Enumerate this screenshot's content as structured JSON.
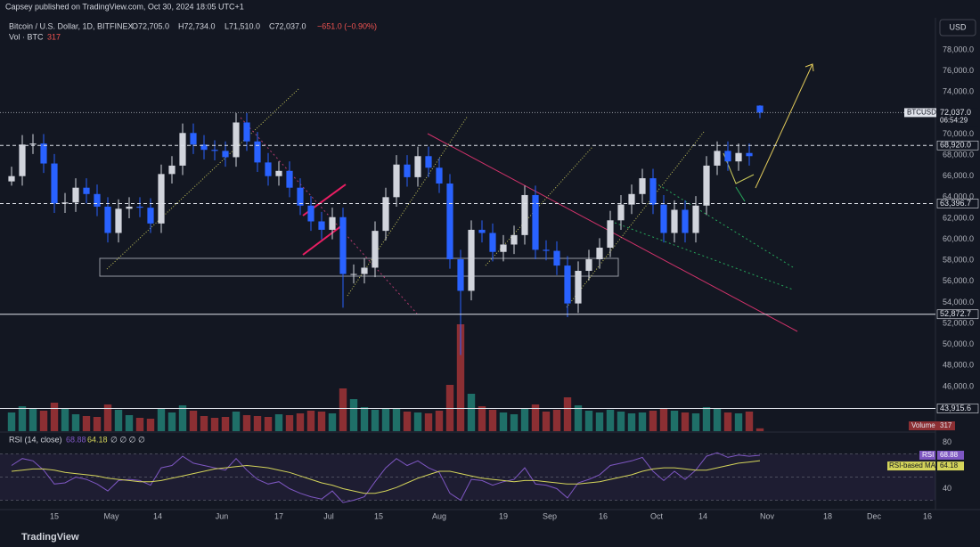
{
  "header": {
    "published": "Capsey published on TradingView.com, Oct 30, 2024 18:05 UTC+1",
    "symbol": "Bitcoin / U.S. Dollar, 1D, BITFINEX",
    "ohlc": [
      "O72,705.0",
      "H72,734.0",
      "L71,510.0",
      "C72,037.0"
    ],
    "change": "−651.0 (−0.90%)",
    "volume_label": "Vol · BTC",
    "volume_value": "317",
    "currency": "USD",
    "footer": "TradingView"
  },
  "chart_data": {
    "type": "candlestick",
    "x": [
      "2024-04-03",
      "2024-04-06",
      "2024-04-09",
      "2024-04-12",
      "2024-04-15",
      "2024-04-18",
      "2024-04-21",
      "2024-04-24",
      "2024-04-27",
      "2024-04-30",
      "2024-05-03",
      "2024-05-06",
      "2024-05-09",
      "2024-05-12",
      "2024-05-15",
      "2024-05-18",
      "2024-05-21",
      "2024-05-24",
      "2024-05-27",
      "2024-05-30",
      "2024-06-02",
      "2024-06-05",
      "2024-06-08",
      "2024-06-11",
      "2024-06-14",
      "2024-06-17",
      "2024-06-20",
      "2024-06-23",
      "2024-06-26",
      "2024-06-29",
      "2024-07-02",
      "2024-07-05",
      "2024-07-08",
      "2024-07-11",
      "2024-07-14",
      "2024-07-17",
      "2024-07-20",
      "2024-07-23",
      "2024-07-26",
      "2024-07-29",
      "2024-08-01",
      "2024-08-04",
      "2024-08-07",
      "2024-08-10",
      "2024-08-13",
      "2024-08-16",
      "2024-08-19",
      "2024-08-22",
      "2024-08-25",
      "2024-08-28",
      "2024-08-31",
      "2024-09-03",
      "2024-09-06",
      "2024-09-09",
      "2024-09-12",
      "2024-09-15",
      "2024-09-18",
      "2024-09-21",
      "2024-09-24",
      "2024-09-27",
      "2024-09-30",
      "2024-10-03",
      "2024-10-06",
      "2024-10-09",
      "2024-10-12",
      "2024-10-15",
      "2024-10-18",
      "2024-10-21",
      "2024-10-24",
      "2024-10-27",
      "2024-10-30"
    ],
    "open": [
      65500,
      66000,
      69000,
      69100,
      67200,
      63400,
      63500,
      64900,
      64300,
      63100,
      60600,
      62900,
      63100,
      63000,
      61500,
      66200,
      67000,
      70100,
      69000,
      68500,
      68400,
      67800,
      71100,
      69300,
      67300,
      66000,
      66500,
      64900,
      63200,
      61700,
      60900,
      62100,
      56700,
      56700,
      57300,
      60800,
      64000,
      67100,
      65900,
      67900,
      66800,
      65300,
      58100,
      55100,
      60900,
      60600,
      58800,
      59500,
      60400,
      64200,
      59000,
      58900,
      57500,
      53900,
      57000,
      58100,
      59200,
      61800,
      63300,
      64300,
      65800,
      63300,
      60600,
      62800,
      60600,
      63200,
      67000,
      68400,
      67400,
      68200,
      72705
    ],
    "high": [
      66900,
      69900,
      70000,
      70000,
      68100,
      64400,
      65800,
      65800,
      65200,
      64000,
      63800,
      64000,
      64000,
      63900,
      67100,
      67900,
      71000,
      71000,
      69900,
      69400,
      69300,
      72000,
      72000,
      70200,
      68200,
      67400,
      67400,
      65800,
      64100,
      62600,
      63000,
      63000,
      57600,
      58200,
      61700,
      64900,
      68000,
      68000,
      68800,
      68800,
      67700,
      66200,
      59000,
      61800,
      61800,
      61500,
      60400,
      61300,
      65100,
      65100,
      59900,
      59800,
      58400,
      57900,
      59000,
      60100,
      62700,
      64200,
      65200,
      66700,
      66700,
      64200,
      63700,
      63700,
      64100,
      67900,
      69300,
      69300,
      69100,
      69100,
      72734
    ],
    "low": [
      65100,
      65100,
      68100,
      66300,
      62500,
      62500,
      62600,
      63400,
      62200,
      59700,
      59700,
      62000,
      62100,
      60600,
      60600,
      65300,
      66100,
      68100,
      67600,
      67500,
      66900,
      66900,
      68400,
      66400,
      65100,
      65100,
      64000,
      62300,
      60800,
      60000,
      60000,
      53500,
      55800,
      55800,
      56400,
      59900,
      63100,
      65000,
      65000,
      65900,
      64400,
      57200,
      49000,
      54200,
      59700,
      57900,
      57900,
      58600,
      59500,
      58100,
      58000,
      56600,
      52600,
      53000,
      56100,
      57200,
      58300,
      60900,
      62400,
      63400,
      62400,
      59700,
      59700,
      59700,
      59700,
      62300,
      66100,
      66500,
      66500,
      67000,
      71510
    ],
    "close": [
      66000,
      69000,
      69100,
      67200,
      63400,
      63500,
      64900,
      64300,
      63100,
      60600,
      62900,
      63100,
      63000,
      61500,
      66200,
      67000,
      70100,
      69000,
      68500,
      68400,
      67800,
      71100,
      69300,
      67300,
      66000,
      66500,
      64900,
      63200,
      61700,
      60900,
      62100,
      56700,
      56700,
      57300,
      60800,
      64000,
      67100,
      65900,
      67900,
      66800,
      65300,
      58100,
      55100,
      60900,
      60600,
      58800,
      59500,
      60400,
      64200,
      59000,
      58900,
      57500,
      53900,
      57000,
      58100,
      59200,
      61800,
      63300,
      64300,
      65800,
      63300,
      60600,
      62800,
      60600,
      63200,
      67000,
      68400,
      67400,
      68200,
      67900,
      72037
    ],
    "volume": [
      2100,
      2800,
      2500,
      2300,
      3200,
      2600,
      1900,
      1700,
      1600,
      3000,
      2400,
      1800,
      1500,
      1400,
      2600,
      2100,
      2900,
      2300,
      1700,
      1500,
      1600,
      2200,
      1800,
      1700,
      1600,
      1900,
      1800,
      2000,
      2300,
      2200,
      2000,
      4800,
      3600,
      2700,
      2400,
      2500,
      2600,
      2200,
      2100,
      2000,
      2300,
      5200,
      12000,
      4200,
      2800,
      2400,
      2100,
      1900,
      2600,
      3000,
      2200,
      2400,
      3800,
      2900,
      2300,
      2100,
      2400,
      2200,
      2000,
      2100,
      2300,
      2600,
      2300,
      2100,
      2000,
      2700,
      2500,
      2100,
      2000,
      2200,
      317
    ],
    "up_color": "#d1d4dc",
    "down_color": "#2962ff",
    "vol_up_color": "#1f6f68",
    "vol_down_color": "#8c2f33",
    "xlim": [
      "2024-04-02",
      "2024-12-18"
    ],
    "xticks": [
      {
        "value": "2024-04-15",
        "label": "15"
      },
      {
        "value": "2024-05-01",
        "label": "May"
      },
      {
        "value": "2024-05-14",
        "label": "14"
      },
      {
        "value": "2024-06-01",
        "label": "Jun"
      },
      {
        "value": "2024-06-17",
        "label": "17"
      },
      {
        "value": "2024-07-01",
        "label": "Jul"
      },
      {
        "value": "2024-07-15",
        "label": "15"
      },
      {
        "value": "2024-08-01",
        "label": "Aug"
      },
      {
        "value": "2024-08-19",
        "label": "19"
      },
      {
        "value": "2024-09-01",
        "label": "Sep"
      },
      {
        "value": "2024-09-16",
        "label": "16"
      },
      {
        "value": "2024-10-01",
        "label": "Oct"
      },
      {
        "value": "2024-10-14",
        "label": "14"
      },
      {
        "value": "2024-11-01",
        "label": "Nov"
      },
      {
        "value": "2024-11-18",
        "label": "18"
      },
      {
        "value": "2024-12-01",
        "label": "Dec"
      },
      {
        "value": "2024-12-16",
        "label": "16"
      }
    ],
    "ylim": [
      41760,
      82740
    ],
    "yticks": [
      {
        "value": 46000,
        "label": "46,000.0"
      },
      {
        "value": 48000,
        "label": "48,000.0"
      },
      {
        "value": 50000,
        "label": "50,000.0"
      },
      {
        "value": 52000,
        "label": "52,000.0"
      },
      {
        "value": 54000,
        "label": "54,000.0"
      },
      {
        "value": 56000,
        "label": "56,000.0"
      },
      {
        "value": 58000,
        "label": "58,000.0"
      },
      {
        "value": 60000,
        "label": "60,000.0"
      },
      {
        "value": 62000,
        "label": "62,000.0"
      },
      {
        "value": 64000,
        "label": "64,000.0"
      },
      {
        "value": 66000,
        "label": "66,000.0"
      },
      {
        "value": 68000,
        "label": "68,000.0"
      },
      {
        "value": 70000,
        "label": "70,000.0"
      },
      {
        "value": 74000,
        "label": "74,000.0"
      },
      {
        "value": 76000,
        "label": "76,000.0"
      },
      {
        "value": 78000,
        "label": "78,000.0"
      }
    ],
    "grid": false,
    "levels": [
      {
        "value": 68920,
        "label": "68,920.0",
        "style": "dashed"
      },
      {
        "value": 63396.7,
        "label": "63,396.7",
        "style": "dashed"
      },
      {
        "value": 52872.7,
        "label": "52,872.7",
        "style": "solid"
      },
      {
        "value": 43915.6,
        "label": "43,915.6",
        "style": "solid"
      }
    ],
    "price_tag": {
      "name": "BTCUSD",
      "value": 72037,
      "label": "72,037.0",
      "countdown": "06:54:29"
    },
    "volume_tag": {
      "name": "Volume",
      "label": "317"
    },
    "rsi": {
      "title": "RSI (14, close)",
      "value_label": "68.88",
      "ma_label": "64.18",
      "extra": "∅ ∅ ∅ ∅",
      "name": "RSI",
      "ma_name": "RSI-based MA",
      "color": "#7e57c2",
      "ma_color": "#d4d45a",
      "ylim": [
        22.7,
        87.3
      ],
      "yticks": [
        40,
        80
      ],
      "levels": [
        70,
        50,
        30
      ],
      "values": [
        60,
        66,
        64,
        56,
        44,
        45,
        50,
        48,
        44,
        38,
        47,
        48,
        47,
        43,
        58,
        60,
        68,
        62,
        60,
        58,
        56,
        66,
        56,
        48,
        44,
        46,
        40,
        36,
        33,
        31,
        38,
        28,
        30,
        33,
        46,
        58,
        66,
        60,
        64,
        58,
        54,
        36,
        30,
        48,
        47,
        43,
        46,
        48,
        58,
        44,
        43,
        40,
        32,
        45,
        48,
        52,
        60,
        62,
        64,
        67,
        55,
        47,
        55,
        48,
        56,
        68,
        71,
        67,
        69,
        68,
        68.88
      ],
      "ma": [
        55,
        56,
        57,
        57,
        56,
        54,
        53,
        52,
        51,
        49,
        48,
        47,
        46,
        46,
        47,
        49,
        51,
        53,
        55,
        57,
        58,
        59,
        60,
        59,
        58,
        56,
        54,
        51,
        48,
        45,
        43,
        40,
        38,
        36,
        36,
        38,
        41,
        45,
        49,
        52,
        55,
        55,
        53,
        51,
        49,
        48,
        47,
        46,
        47,
        47,
        46,
        45,
        44,
        44,
        45,
        46,
        48,
        50,
        52,
        55,
        57,
        58,
        58,
        57,
        56,
        56,
        58,
        60,
        62,
        63,
        64.18
      ]
    }
  }
}
